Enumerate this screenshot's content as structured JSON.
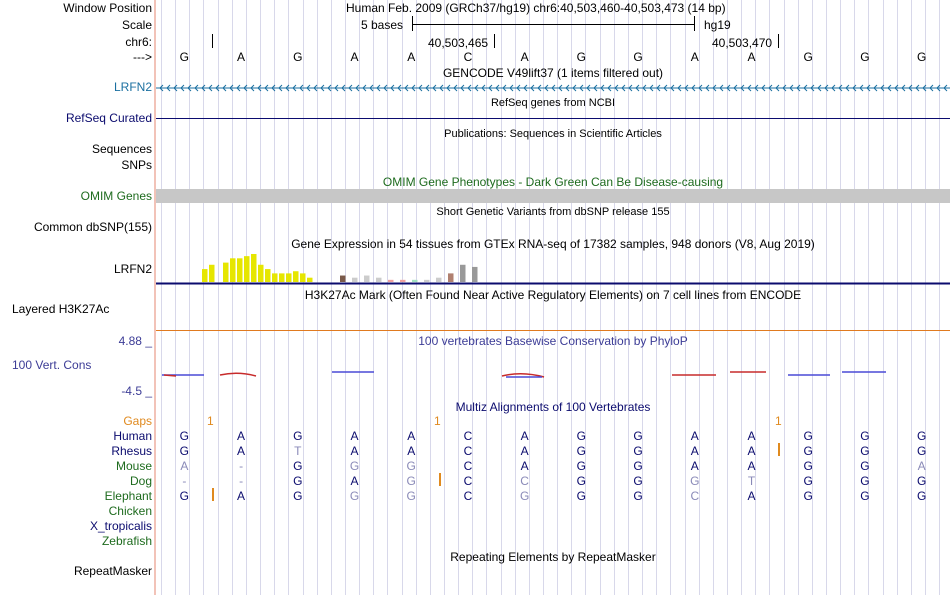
{
  "colors": {
    "maroon": "#000000",
    "gencode_blue": "#1a6fa0",
    "navy": "#0b0b6e",
    "green": "#1e6b1e",
    "orange": "#e08a1f",
    "purple_blue": "#3c3c96",
    "gray_bar": "#c7c7c7",
    "gtex_yellow": "#e6e600"
  },
  "header": {
    "assembly_line": "Human Feb. 2009 (GRCh37/hg19)   chr6:40,503,460-40,503,473 (14 bp)",
    "scale_label": "5 bases",
    "scale_assembly": "hg19",
    "pos_left": "40,503,465",
    "pos_right": "40,503,470"
  },
  "labels": {
    "window_position": "Window Position",
    "scale": "Scale",
    "chr": "chr6:",
    "arrow": "--->",
    "lrfn2_gencode": "LRFN2",
    "refseq": "RefSeq Curated",
    "sequences": "Sequences",
    "snps": "SNPs",
    "omim": "OMIM Genes",
    "dbsnp": "Common dbSNP(155)",
    "lrfn2_gtex": "LRFN2",
    "h3k27ac": "Layered H3K27Ac",
    "cons_max": "4.88 _",
    "cons": "100 Vert. Cons",
    "cons_min": "-4.5 _",
    "gaps": "Gaps",
    "human": "Human",
    "rhesus": "Rhesus",
    "mouse": "Mouse",
    "dog": "Dog",
    "elephant": "Elephant",
    "chicken": "Chicken",
    "xtrop": "X_tropicalis",
    "zebrafish": "Zebrafish",
    "repeatmasker": "RepeatMasker"
  },
  "tracks": {
    "gencode_title": "GENCODE V49lift37 (1 items filtered out)",
    "refseq_title": "RefSeq genes from NCBI",
    "pubs_title": "Publications: Sequences in Scientific Articles",
    "omim_title": "OMIM Gene Phenotypes - Dark Green Can Be Disease-causing",
    "dbsnp_title": "Short Genetic Variants from dbSNP release 155",
    "gtex_title": "Gene Expression in 54 tissues from GTEx RNA-seq of 17382 samples, 948 donors (V8, Aug 2019)",
    "h3k_title": "H3K27Ac Mark (Often Found Near Active Regulatory Elements) on 7 cell lines from ENCODE",
    "phylop_title": "100 vertebrates Basewise Conservation by PhyloP",
    "multiz_title": "Multiz Alignments of 100 Vertebrates",
    "rmsk_title": "Repeating Elements by RepeatMasker",
    "gap_marks": [
      "1",
      "1",
      "1"
    ]
  },
  "sequence": [
    "G",
    "A",
    "G",
    "A",
    "A",
    "C",
    "A",
    "G",
    "G",
    "A",
    "A",
    "G",
    "G",
    "G"
  ],
  "alignment": {
    "human": [
      "G",
      "A",
      "G",
      "A",
      "A",
      "C",
      "A",
      "G",
      "G",
      "A",
      "A",
      "G",
      "G",
      "G"
    ],
    "rhesus": [
      "G",
      "A",
      "T",
      "A",
      "A",
      "C",
      "A",
      "G",
      "G",
      "A",
      "A",
      "G",
      "G",
      "G"
    ],
    "mouse": [
      "A",
      "-",
      "G",
      "G",
      "G",
      "C",
      "A",
      "G",
      "G",
      "A",
      "A",
      "G",
      "G",
      "A"
    ],
    "dog": [
      "-",
      "-",
      "G",
      "A",
      "G",
      "C",
      "C",
      "G",
      "G",
      "G",
      "T",
      "G",
      "G",
      "G"
    ],
    "elephant": [
      "G",
      "A",
      "G",
      "G",
      "G",
      "C",
      "G",
      "G",
      "G",
      "C",
      "A",
      "G",
      "G",
      "G"
    ]
  },
  "alignment_match": {
    "human": [
      1,
      1,
      1,
      1,
      1,
      1,
      1,
      1,
      1,
      1,
      1,
      1,
      1,
      1
    ],
    "rhesus": [
      1,
      1,
      0,
      1,
      1,
      1,
      1,
      1,
      1,
      1,
      1,
      1,
      1,
      1
    ],
    "mouse": [
      0,
      0,
      1,
      0,
      0,
      1,
      1,
      1,
      1,
      1,
      1,
      1,
      1,
      0
    ],
    "dog": [
      0,
      0,
      1,
      1,
      0,
      1,
      0,
      1,
      1,
      0,
      0,
      1,
      1,
      1
    ],
    "elephant": [
      1,
      1,
      1,
      0,
      0,
      1,
      0,
      1,
      1,
      0,
      1,
      1,
      1,
      1
    ]
  },
  "gtex": {
    "values": [
      6,
      8,
      0,
      9,
      11,
      11,
      12,
      13,
      8,
      6,
      4,
      4,
      4,
      5,
      4,
      2,
      0,
      0,
      3,
      2,
      3,
      2,
      1,
      1,
      1,
      1,
      2,
      4,
      8,
      7
    ]
  }
}
